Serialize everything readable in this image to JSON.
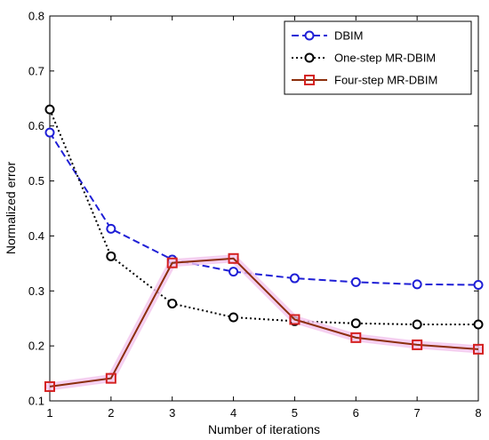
{
  "chart_data": {
    "type": "line",
    "title": "",
    "xlabel": "Number of iterations",
    "ylabel": "Normalized error",
    "x": [
      1,
      2,
      3,
      4,
      5,
      6,
      7,
      8
    ],
    "xlim": [
      1,
      8
    ],
    "ylim": [
      0.1,
      0.8
    ],
    "xticks": [
      "1",
      "2",
      "3",
      "4",
      "5",
      "6",
      "7",
      "8"
    ],
    "yticks": [
      "0.1",
      "0.2",
      "0.3",
      "0.4",
      "0.5",
      "0.6",
      "0.7",
      "0.8"
    ],
    "grid": false,
    "legend_position": "top-right",
    "series": [
      {
        "name": "DBIM",
        "color": "#1f1fd6",
        "line_style": "dashed",
        "marker": "circle",
        "values": [
          0.588,
          0.413,
          0.357,
          0.335,
          0.323,
          0.316,
          0.312,
          0.311
        ]
      },
      {
        "name": "One-step MR-DBIM",
        "color": "#000000",
        "line_style": "dotted",
        "marker": "circle",
        "values": [
          0.63,
          0.363,
          0.277,
          0.252,
          0.245,
          0.241,
          0.239,
          0.239
        ]
      },
      {
        "name": "Four-step MR-DBIM",
        "color": "#8b2e0c",
        "marker_color": "#d42020",
        "line_style": "solid",
        "marker": "square",
        "values": [
          0.126,
          0.141,
          0.351,
          0.359,
          0.248,
          0.215,
          0.202,
          0.194
        ]
      }
    ]
  }
}
